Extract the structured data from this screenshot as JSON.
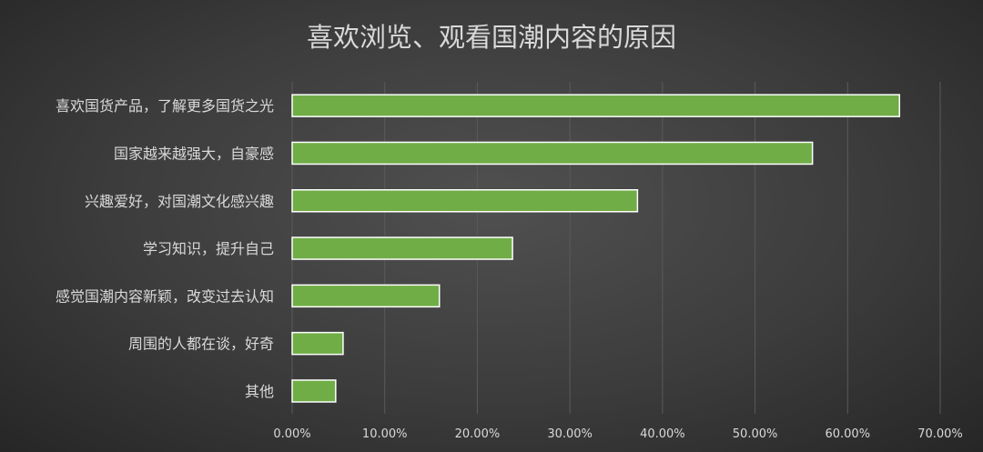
{
  "chart_data": {
    "type": "bar",
    "orientation": "horizontal",
    "title": "喜欢浏览、观看国潮内容的原因",
    "categories": [
      "喜欢国货产品，了解更多国货之光",
      "国家越来越强大，自豪感",
      "兴趣爱好，对国潮文化感兴趣",
      "学习知识，提升自己",
      "感觉国潮内容新颖，改变过去认知",
      "周围的人都在谈，好奇",
      "其他"
    ],
    "values": [
      65.6,
      56.2,
      37.3,
      23.8,
      15.9,
      5.5,
      4.7
    ],
    "xlim": [
      0,
      70
    ],
    "xticks": [
      "0.00%",
      "10.00%",
      "20.00%",
      "30.00%",
      "40.00%",
      "50.00%",
      "60.00%",
      "70.00%"
    ],
    "xlabel": "",
    "ylabel": "",
    "grid": true,
    "bar_color": "#70ad47"
  }
}
